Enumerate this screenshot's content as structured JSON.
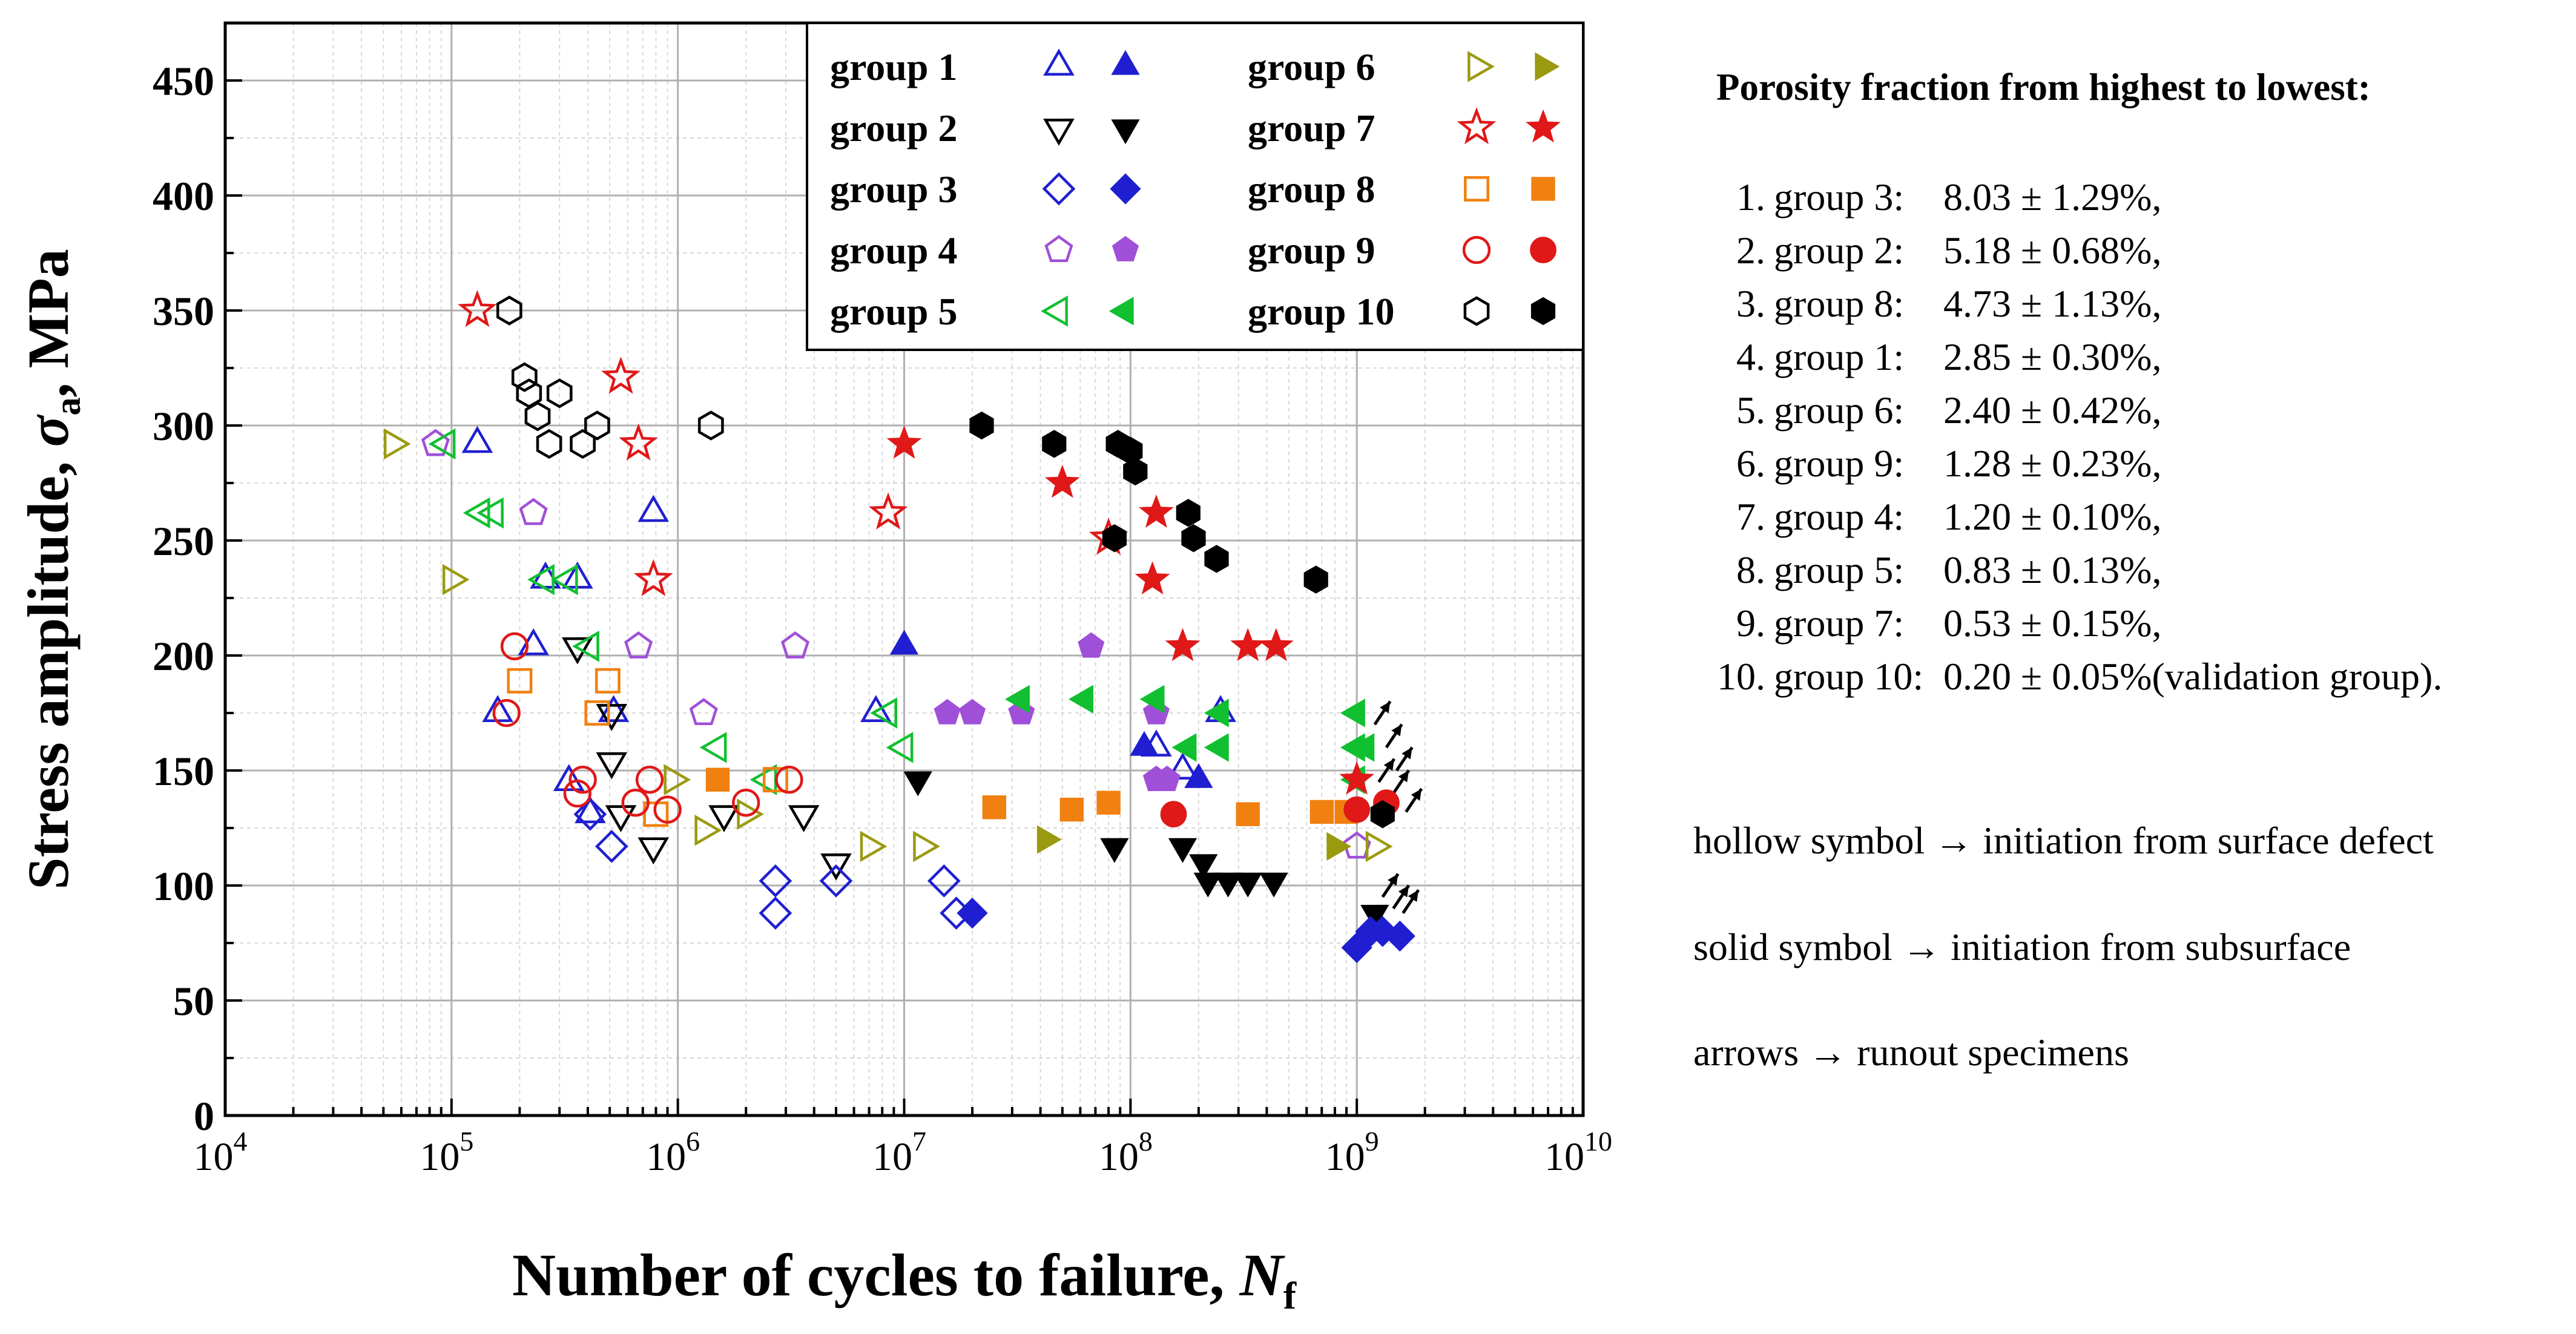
{
  "chart_data": {
    "type": "scatter",
    "xlabel_main": "Number of cycles to failure,",
    "xlabel_symbol": "N",
    "xlabel_sub": "f",
    "ylabel_main": "Stress amplitude,",
    "ylabel_symbol": "σ",
    "ylabel_sub": "a",
    "ylabel_unit": "MPa",
    "xscale": "log",
    "xlim_exp": [
      4,
      10
    ],
    "x_tick_base": "10",
    "x_tick_exps": [
      "4",
      "5",
      "6",
      "7",
      "8",
      "9",
      "10"
    ],
    "ylim": [
      0,
      475
    ],
    "y_ticks": [
      "0",
      "50",
      "100",
      "150",
      "200",
      "250",
      "300",
      "350",
      "400",
      "450"
    ],
    "grid": true,
    "legend_position": "top-right inside plot",
    "series": [
      {
        "name": "group 1",
        "marker": "triangle-up",
        "color": "#1f1fd1",
        "hollow": [
          [
            130000.0,
            292
          ],
          [
            230000.0,
            204
          ],
          [
            260000.0,
            233
          ],
          [
            360000.0,
            233
          ],
          [
            780000.0,
            262
          ],
          [
            160000.0,
            175
          ],
          [
            520000.0,
            175
          ],
          [
            410000.0,
            131
          ],
          [
            330000.0,
            145
          ],
          [
            7500000.0,
            175
          ],
          [
            130000000.0,
            160
          ],
          [
            250000000.0,
            175
          ],
          [
            170000000.0,
            150
          ]
        ],
        "solid": [
          [
            10000000.0,
            204
          ],
          [
            115000000.0,
            160
          ],
          [
            200000000.0,
            146
          ]
        ]
      },
      {
        "name": "group 2",
        "marker": "triangle-down",
        "color": "#000000",
        "hollow": [
          [
            360000.0,
            204
          ],
          [
            510000.0,
            175
          ],
          [
            510000.0,
            154
          ],
          [
            560000.0,
            131
          ],
          [
            780000.0,
            117
          ],
          [
            1600000.0,
            131
          ],
          [
            3600000.0,
            131
          ],
          [
            5000000.0,
            110
          ]
        ],
        "solid": [
          [
            11500000.0,
            146
          ],
          [
            85000000.0,
            117
          ],
          [
            170000000.0,
            117
          ],
          [
            210000000.0,
            110
          ],
          [
            220000000.0,
            102
          ],
          [
            270000000.0,
            102
          ],
          [
            330000000.0,
            102
          ],
          [
            430000000.0,
            102
          ],
          [
            1200000000.0,
            88
          ]
        ],
        "runout": true
      },
      {
        "name": "group 3",
        "marker": "diamond",
        "color": "#1f1fd1",
        "hollow": [
          [
            410000.0,
            131
          ],
          [
            510000.0,
            117
          ],
          [
            2700000.0,
            102
          ],
          [
            2700000.0,
            88
          ],
          [
            5000000.0,
            102
          ],
          [
            15000000.0,
            102
          ],
          [
            17000000.0,
            88
          ]
        ],
        "solid": [
          [
            20000000.0,
            88
          ],
          [
            1000000000.0,
            73
          ],
          [
            1150000000.0,
            80
          ],
          [
            1300000000.0,
            80
          ],
          [
            1550000000.0,
            78
          ]
        ],
        "runout": true
      },
      {
        "name": "group 4",
        "marker": "pentagon",
        "color": "#a050d8",
        "hollow": [
          [
            230000.0,
            262
          ],
          [
            670000.0,
            204
          ],
          [
            3300000.0,
            204
          ],
          [
            1300000.0,
            175
          ],
          [
            85000.0,
            292
          ],
          [
            1000000000.0,
            117
          ]
        ],
        "solid": [
          [
            15500000.0,
            175
          ],
          [
            20000000.0,
            175
          ],
          [
            33000000.0,
            175
          ],
          [
            67000000.0,
            204
          ],
          [
            130000000.0,
            146
          ],
          [
            145000000.0,
            146
          ],
          [
            130000000.0,
            175
          ]
        ]
      },
      {
        "name": "group 5",
        "marker": "triangle-left",
        "color": "#10c030",
        "hollow": [
          [
            95000.0,
            292
          ],
          [
            135000.0,
            262
          ],
          [
            155000.0,
            262
          ],
          [
            260000.0,
            233
          ],
          [
            330000.0,
            233
          ],
          [
            410000.0,
            204
          ],
          [
            1500000.0,
            160
          ],
          [
            2500000.0,
            146
          ],
          [
            10000000.0,
            160
          ],
          [
            8500000.0,
            175
          ]
        ],
        "solid": [
          [
            33000000.0,
            181
          ],
          [
            63000000.0,
            181
          ],
          [
            130000000.0,
            181
          ],
          [
            180000000.0,
            160
          ],
          [
            250000000.0,
            175
          ],
          [
            250000000.0,
            160
          ],
          [
            1000000000.0,
            160
          ],
          [
            1000000000.0,
            146
          ],
          [
            1100000000.0,
            160
          ],
          [
            1000000000.0,
            175
          ]
        ],
        "runout": true
      },
      {
        "name": "group 6",
        "marker": "triangle-right",
        "color": "#9a9a10",
        "hollow": [
          [
            55000.0,
            292
          ],
          [
            100000.0,
            233
          ],
          [
            950000.0,
            146
          ],
          [
            1300000.0,
            124
          ],
          [
            2000000.0,
            131
          ],
          [
            7000000.0,
            117
          ],
          [
            12000000.0,
            117
          ],
          [
            1200000000.0,
            117
          ]
        ],
        "solid": [
          [
            42000000.0,
            120
          ],
          [
            800000000.0,
            117
          ]
        ],
        "runout": true
      },
      {
        "name": "group 7",
        "marker": "star",
        "color": "#e01818",
        "hollow": [
          [
            130000.0,
            350
          ],
          [
            560000.0,
            321
          ],
          [
            670000.0,
            292
          ],
          [
            780000.0,
            233
          ],
          [
            8500000.0,
            262
          ],
          [
            80000000.0,
            251
          ]
        ],
        "solid": [
          [
            10000000.0,
            292
          ],
          [
            50000000.0,
            275
          ],
          [
            130000000.0,
            262
          ],
          [
            125000000.0,
            233
          ],
          [
            170000000.0,
            204
          ],
          [
            330000000.0,
            204
          ],
          [
            440000000.0,
            204
          ],
          [
            1000000000.0,
            146
          ]
        ]
      },
      {
        "name": "group 8",
        "marker": "square",
        "color": "#f08010",
        "hollow": [
          [
            200000.0,
            189
          ],
          [
            440000.0,
            175
          ],
          [
            490000.0,
            189
          ],
          [
            800000.0,
            131
          ],
          [
            2700000.0,
            146
          ]
        ],
        "solid": [
          [
            1500000.0,
            146
          ],
          [
            25000000.0,
            134
          ],
          [
            55000000.0,
            133
          ],
          [
            80000000.0,
            136
          ],
          [
            330000000.0,
            131
          ],
          [
            700000000.0,
            132
          ],
          [
            900000000.0,
            132
          ]
        ]
      },
      {
        "name": "group 9",
        "marker": "circle",
        "color": "#e01818",
        "hollow": [
          [
            175000.0,
            175
          ],
          [
            190000.0,
            204
          ],
          [
            360000.0,
            140
          ],
          [
            380000.0,
            146
          ],
          [
            650000.0,
            136
          ],
          [
            750000.0,
            146
          ],
          [
            900000.0,
            133
          ],
          [
            2000000.0,
            136
          ],
          [
            3100000.0,
            146
          ]
        ],
        "solid": [
          [
            155000000.0,
            131
          ],
          [
            1000000000.0,
            133
          ],
          [
            1350000000.0,
            136
          ]
        ],
        "runout": true
      },
      {
        "name": "group 10",
        "marker": "hexagon",
        "color": "#000000",
        "hollow": [
          [
            180000.0,
            350
          ],
          [
            210000.0,
            321
          ],
          [
            220000.0,
            314
          ],
          [
            240000.0,
            304
          ],
          [
            270000.0,
            292
          ],
          [
            300000.0,
            314
          ],
          [
            380000.0,
            292
          ],
          [
            440000.0,
            300
          ],
          [
            1400000.0,
            300
          ]
        ],
        "solid": [
          [
            22000000.0,
            300
          ],
          [
            46000000.0,
            292
          ],
          [
            88000000.0,
            292
          ],
          [
            100000000.0,
            289
          ],
          [
            105000000.0,
            280
          ],
          [
            85000000.0,
            251
          ],
          [
            180000000.0,
            262
          ],
          [
            190000000.0,
            251
          ],
          [
            240000000.0,
            242
          ],
          [
            660000000.0,
            233
          ],
          [
            1300000000.0,
            131
          ]
        ],
        "runout": true
      }
    ],
    "runout_arrows_at": [
      [
        1200000000.0,
        170
      ],
      [
        1350000000.0,
        160
      ],
      [
        1500000000.0,
        150
      ],
      [
        1250000000.0,
        145
      ],
      [
        1450000000.0,
        140
      ],
      [
        1650000000.0,
        132
      ],
      [
        1300000000.0,
        95
      ],
      [
        1450000000.0,
        90
      ],
      [
        1600000000.0,
        88
      ]
    ]
  },
  "side_panel": {
    "title": "Porosity fraction from highest to lowest:",
    "ranking": [
      {
        "num": "1.",
        "group": "group 3:",
        "value": "8.03 ± 1.29%,",
        "note": ""
      },
      {
        "num": "2.",
        "group": "group 2:",
        "value": "5.18 ± 0.68%,",
        "note": ""
      },
      {
        "num": "3.",
        "group": "group 8:",
        "value": "4.73 ± 1.13%,",
        "note": ""
      },
      {
        "num": "4.",
        "group": "group 1:",
        "value": "2.85 ± 0.30%,",
        "note": ""
      },
      {
        "num": "5.",
        "group": "group 6:",
        "value": "2.40 ± 0.42%,",
        "note": ""
      },
      {
        "num": "6.",
        "group": "group 9:",
        "value": "1.28 ± 0.23%,",
        "note": ""
      },
      {
        "num": "7.",
        "group": "group 4:",
        "value": "1.20 ± 0.10%,",
        "note": ""
      },
      {
        "num": "8.",
        "group": "group 5:",
        "value": "0.83 ± 0.13%,",
        "note": ""
      },
      {
        "num": "9.",
        "group": "group 7:",
        "value": "0.53 ± 0.15%,",
        "note": ""
      },
      {
        "num": "10.",
        "group": "group 10:",
        "value": "0.20 ± 0.05%",
        "note": " (validation group)."
      }
    ],
    "notes": [
      {
        "lead": "hollow symbol",
        "arrow": "→",
        "text": "initiation from surface defect"
      },
      {
        "lead": "solid symbol",
        "arrow": "→",
        "text": "initiation from subsurface"
      },
      {
        "lead": "arrows",
        "arrow": "→",
        "text": "runout specimens"
      }
    ]
  }
}
